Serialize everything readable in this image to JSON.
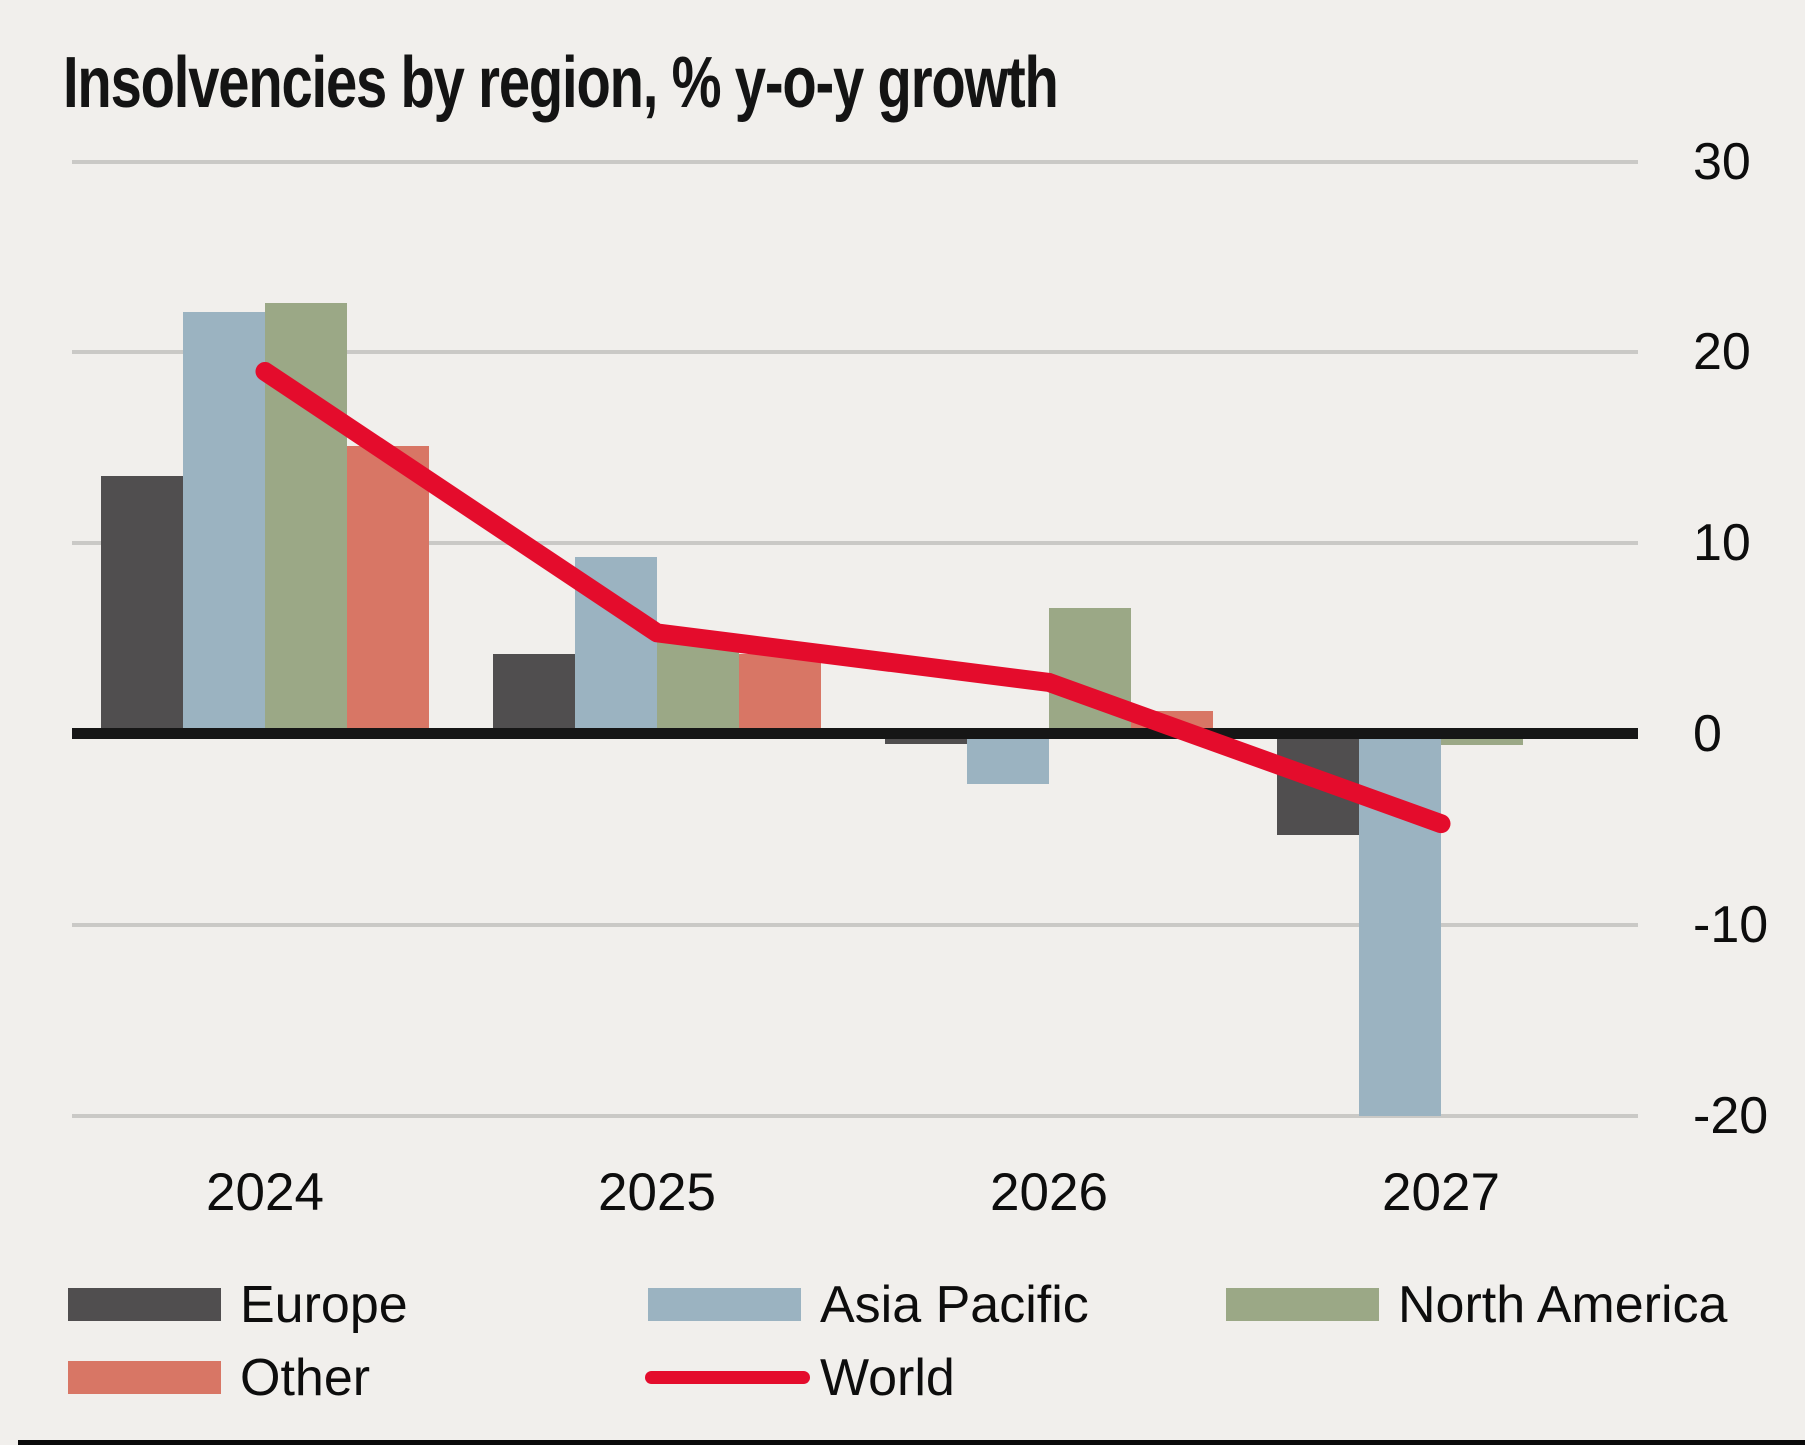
{
  "title": "Insolvencies by region, % y-o-y growth",
  "colors": {
    "background": "#f1efec",
    "gridline": "#cac9c6",
    "zero_axis": "#161616",
    "text": "#0d0d0d",
    "bottom_border": "#0a0a0a"
  },
  "chart_data": {
    "type": "bar",
    "title": "Insolvencies by region, % y-o-y growth",
    "categories": [
      "2024",
      "2025",
      "2026",
      "2027"
    ],
    "series": [
      {
        "name": "Europe",
        "type": "bar",
        "color": "#504e4f",
        "values": [
          13.5,
          4.2,
          -0.5,
          -5.3
        ]
      },
      {
        "name": "Asia Pacific",
        "type": "bar",
        "color": "#9bb3c1",
        "values": [
          22.1,
          9.3,
          -2.6,
          -20
        ]
      },
      {
        "name": "North America",
        "type": "bar",
        "color": "#9ba886",
        "values": [
          22.6,
          4.8,
          6.6,
          -0.6
        ]
      },
      {
        "name": "Other",
        "type": "bar",
        "color": "#d87665",
        "values": [
          15.1,
          4.2,
          1.2,
          0
        ]
      },
      {
        "name": "World",
        "type": "line",
        "color": "#e40c2c",
        "values": [
          19,
          5.3,
          2.7,
          -4.7
        ]
      }
    ],
    "yticks": [
      30,
      20,
      10,
      0,
      -10,
      -20
    ],
    "ylim": [
      -22,
      32
    ],
    "grid": true,
    "legend_position": "bottom",
    "legend_order": [
      "Europe",
      "Asia Pacific",
      "North America",
      "Other",
      "World"
    ]
  }
}
